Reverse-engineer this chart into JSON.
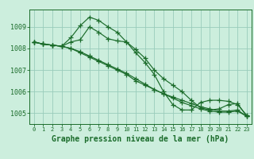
{
  "background_color": "#cceedd",
  "grid_color": "#99ccbb",
  "line_color": "#1a6b2a",
  "marker_color": "#1a6b2a",
  "xlabel": "Graphe pression niveau de la mer (hPa)",
  "xlabel_fontsize": 7,
  "ylim": [
    1004.5,
    1009.8
  ],
  "xlim": [
    -0.5,
    23.5
  ],
  "yticks": [
    1005,
    1006,
    1007,
    1008,
    1009
  ],
  "xticks": [
    0,
    1,
    2,
    3,
    4,
    5,
    6,
    7,
    8,
    9,
    10,
    11,
    12,
    13,
    14,
    15,
    16,
    17,
    18,
    19,
    20,
    21,
    22,
    23
  ],
  "series": [
    [
      1008.3,
      1008.2,
      1008.15,
      1008.1,
      1008.5,
      1009.05,
      1009.45,
      1009.3,
      1009.0,
      1008.75,
      1008.3,
      1007.95,
      1007.55,
      1007.0,
      1006.6,
      1006.3,
      1006.0,
      1005.6,
      1005.25,
      1005.15,
      1005.2,
      1005.4,
      1005.45,
      1004.85
    ],
    [
      1008.3,
      1008.2,
      1008.15,
      1008.1,
      1008.0,
      1007.8,
      1007.6,
      1007.4,
      1007.2,
      1007.0,
      1006.8,
      1006.5,
      1006.3,
      1006.1,
      1005.9,
      1005.7,
      1005.5,
      1005.35,
      1005.2,
      1005.1,
      1005.05,
      1005.05,
      1005.1,
      1004.85
    ],
    [
      1008.3,
      1008.2,
      1008.15,
      1008.1,
      1008.0,
      1007.85,
      1007.65,
      1007.45,
      1007.25,
      1007.05,
      1006.85,
      1006.6,
      1006.35,
      1006.1,
      1005.9,
      1005.75,
      1005.6,
      1005.45,
      1005.3,
      1005.2,
      1005.1,
      1005.1,
      1005.15,
      1004.85
    ],
    [
      1008.3,
      1008.2,
      1008.15,
      1008.1,
      1008.3,
      1008.4,
      1009.0,
      1008.75,
      1008.45,
      1008.35,
      1008.3,
      1007.8,
      1007.35,
      1006.8,
      1006.0,
      1005.4,
      1005.15,
      1005.15,
      1005.5,
      1005.6,
      1005.6,
      1005.55,
      1005.4,
      1004.9
    ]
  ]
}
